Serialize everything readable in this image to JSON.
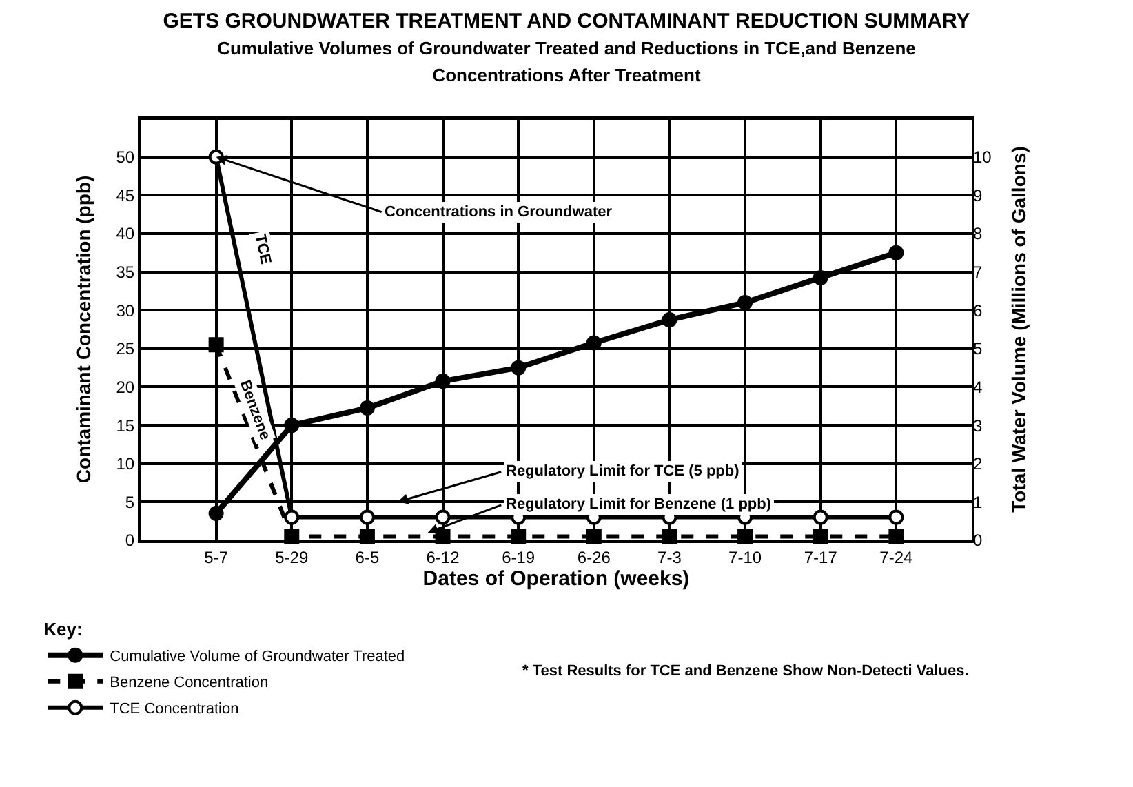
{
  "chart_data": {
    "type": "line",
    "title": "GETS GROUNDWATER TREATMENT AND CONTAMINANT REDUCTION SUMMARY",
    "subtitle": "Cumulative Volumes of Groundwater Treated and Reductions in TCE,and Benzene\nConcentrations After Treatment",
    "xlabel": "Dates of Operation (weeks)",
    "ylabel": "Contaminant Concentration (ppb)",
    "y2label": "Total Water Volume (Millions of Gallons)",
    "legend_title": "Key:",
    "categories": [
      "5-7",
      "5-29",
      "6-5",
      "6-12",
      "6-19",
      "6-26",
      "7-3",
      "7-10",
      "7-17",
      "7-24"
    ],
    "series": [
      {
        "name": "Cumulative Volume of Groundwater Treated",
        "color": "#000000",
        "axis": "y2",
        "marker": "circle",
        "values": [
          0.7,
          3.0,
          3.45,
          4.15,
          4.5,
          5.15,
          5.75,
          6.2,
          6.85,
          7.5
        ]
      },
      {
        "name": "Benzene Concentration",
        "color": "#000000",
        "marker": "square",
        "line_style": "dashed",
        "values": [
          25.5,
          0.5,
          0.5,
          0.5,
          0.5,
          0.5,
          0.5,
          0.5,
          0.5,
          0.5
        ]
      },
      {
        "name": "TCE Concentration",
        "color": "#000000",
        "marker": "circle-open",
        "values": [
          50,
          3,
          3,
          3,
          3,
          3,
          3,
          3,
          3,
          3
        ]
      }
    ],
    "ylim": [
      0,
      55
    ],
    "yticks": [
      0,
      5,
      10,
      15,
      20,
      25,
      30,
      35,
      40,
      45,
      50
    ],
    "y2lim": [
      0,
      11
    ],
    "y2ticks": [
      0,
      1,
      2,
      3,
      4,
      5,
      6,
      7,
      8,
      9,
      10
    ],
    "grid": true,
    "legend": "bottom left",
    "annotations": [
      {
        "text": "Concentrations in Groundwater",
        "x": "5-7",
        "y": 50
      },
      "Regulatory Limit for TCE (5 ppb)",
      {
        "text": "Regulatory Limit for Benzene (1 ppb)",
        "y": 1
      },
      "TCE",
      "Benzene",
      "* Test Results for TCE and Benzene Show Non-Detecti Values."
    ]
  }
}
